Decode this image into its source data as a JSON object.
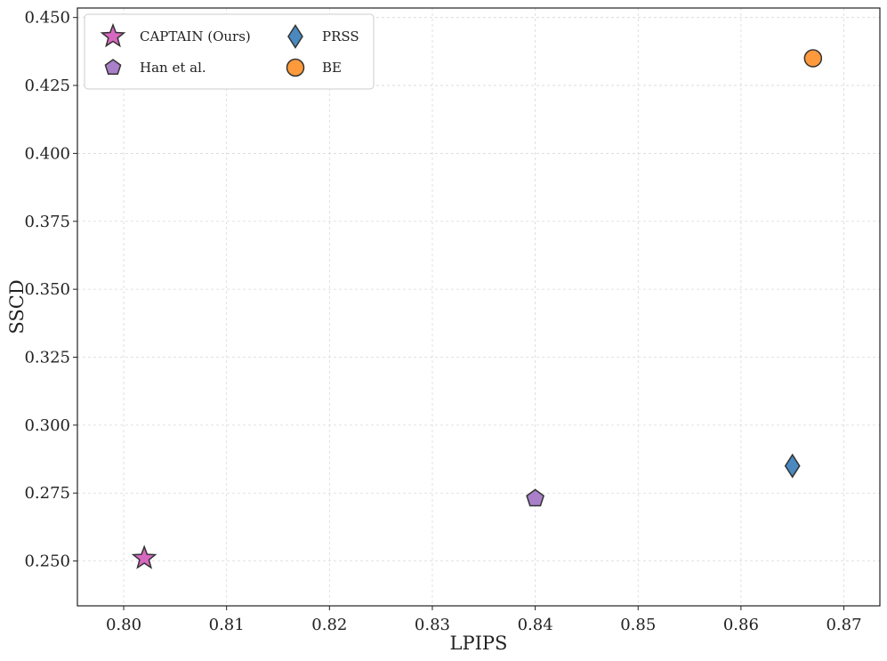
{
  "chart_data": {
    "type": "scatter",
    "title": "",
    "xlabel": "LPIPS",
    "ylabel": "SSCD",
    "xlim": [
      0.7955,
      0.8735
    ],
    "ylim": [
      0.2335,
      0.4535
    ],
    "x_ticks": [
      "0.80",
      "0.81",
      "0.82",
      "0.83",
      "0.84",
      "0.85",
      "0.86",
      "0.87"
    ],
    "y_ticks": [
      "0.250",
      "0.275",
      "0.300",
      "0.325",
      "0.350",
      "0.375",
      "0.400",
      "0.425",
      "0.450"
    ],
    "x_tick_values": [
      0.8,
      0.81,
      0.82,
      0.83,
      0.84,
      0.85,
      0.86,
      0.87
    ],
    "y_tick_values": [
      0.25,
      0.275,
      0.3,
      0.325,
      0.35,
      0.375,
      0.4,
      0.425,
      0.45
    ],
    "grid": true,
    "legend_position": "top-left",
    "series": [
      {
        "name": "CAPTAIN (Ours)",
        "marker": "star",
        "color": "#d768c0",
        "x": 0.802,
        "y": 0.251
      },
      {
        "name": "Han et al.",
        "marker": "pentagon",
        "color": "#a97fc9",
        "x": 0.84,
        "y": 0.273
      },
      {
        "name": "PRSS",
        "marker": "diamond",
        "color": "#4a88c0",
        "x": 0.865,
        "y": 0.285
      },
      {
        "name": "BE",
        "marker": "circle",
        "color": "#ff9a3c",
        "x": 0.867,
        "y": 0.435
      }
    ]
  }
}
